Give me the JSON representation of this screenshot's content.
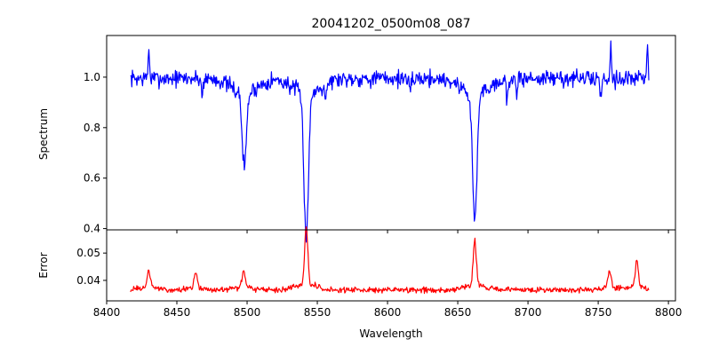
{
  "figure": {
    "title": "20041202_0500m08_087",
    "xlabel": "Wavelength"
  },
  "chart_data": [
    {
      "type": "line",
      "panel": "spectrum",
      "ylabel": "Spectrum",
      "color": "#0000ff",
      "xlim": [
        8400,
        8805
      ],
      "ylim": [
        0.395,
        1.165
      ],
      "xticks": [
        8400,
        8450,
        8500,
        8550,
        8600,
        8650,
        8700,
        8750,
        8800
      ],
      "yticks": [
        0.4,
        0.6,
        0.8,
        1.0
      ],
      "ytick_labels": [
        "0.4",
        "0.6",
        "0.8",
        "1.0"
      ],
      "x_range": [
        8417,
        8786
      ],
      "continuum": 0.995,
      "noise_amplitude": 0.033,
      "spikes": [
        {
          "x": 8430,
          "y": 1.11
        },
        {
          "x": 8759,
          "y": 1.13
        },
        {
          "x": 8785,
          "y": 1.09
        }
      ],
      "absorption_lines": [
        {
          "x": 8498.0,
          "depth": 0.29,
          "width": 1.5,
          "min_value": 0.7
        },
        {
          "x": 8542.1,
          "depth": 0.565,
          "width": 1.6,
          "min_value": 0.43
        },
        {
          "x": 8662.1,
          "depth": 0.5,
          "width": 1.6,
          "min_value": 0.49
        }
      ],
      "minor_dips": [
        {
          "x": 8468,
          "y": 0.93
        },
        {
          "x": 8556,
          "y": 0.94
        },
        {
          "x": 8616,
          "y": 0.92
        },
        {
          "x": 8685,
          "y": 0.9
        },
        {
          "x": 8692,
          "y": 0.92
        },
        {
          "x": 8752,
          "y": 0.92
        }
      ]
    },
    {
      "type": "line",
      "panel": "error",
      "ylabel": "Error",
      "color": "#ff0000",
      "xlim": [
        8400,
        8805
      ],
      "ylim": [
        0.0325,
        0.0585
      ],
      "xticks": [
        8400,
        8450,
        8500,
        8550,
        8600,
        8650,
        8700,
        8750,
        8800
      ],
      "xtick_labels": [
        "8400",
        "8450",
        "8500",
        "8550",
        "8600",
        "8650",
        "8700",
        "8750",
        "8800"
      ],
      "yticks": [
        0.04,
        0.05
      ],
      "ytick_labels": [
        "0.04",
        "0.05"
      ],
      "x_range": [
        8417,
        8786
      ],
      "baseline": 0.0365,
      "noise_amplitude": 0.0008,
      "peaks": [
        {
          "x": 8430,
          "y": 0.043
        },
        {
          "x": 8463.5,
          "y": 0.042
        },
        {
          "x": 8497.5,
          "y": 0.043
        },
        {
          "x": 8542.1,
          "y": 0.057
        },
        {
          "x": 8662.1,
          "y": 0.053
        },
        {
          "x": 8758,
          "y": 0.043
        },
        {
          "x": 8777.5,
          "y": 0.046
        }
      ]
    }
  ]
}
